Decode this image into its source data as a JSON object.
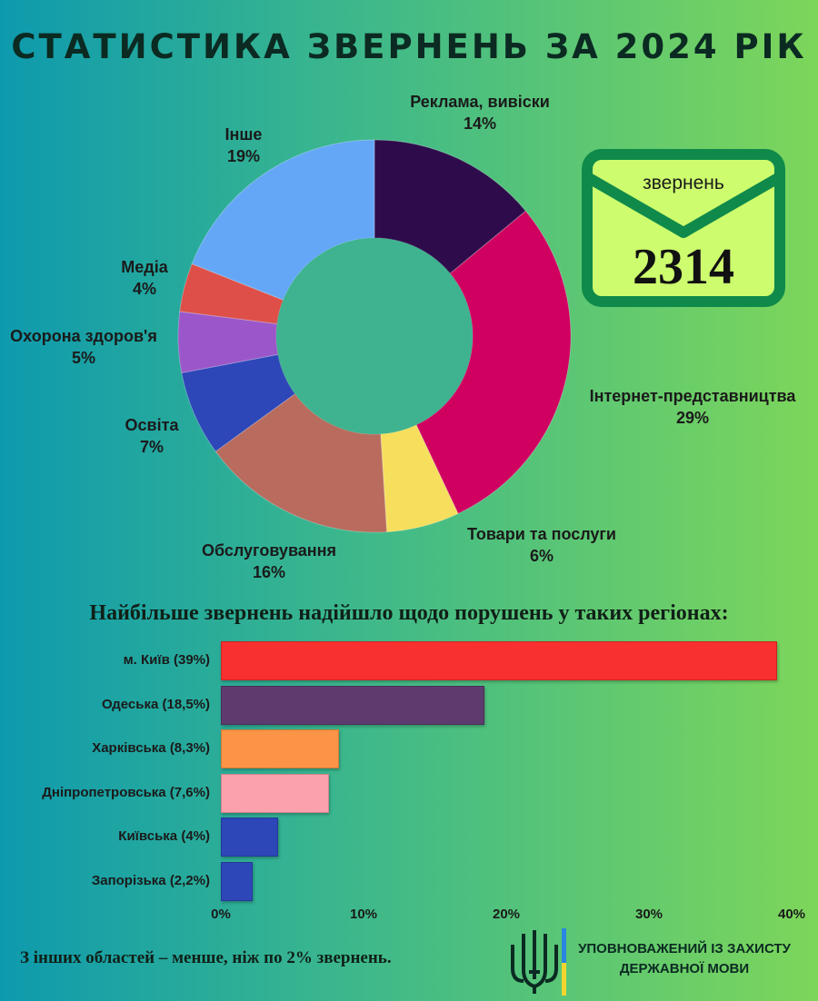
{
  "title": "СТАТИСТИКА ЗВЕРНЕНЬ ЗА 2024 РІК",
  "envelope": {
    "label": "звернень",
    "number": "2314"
  },
  "colors": {
    "background_left": "#0e9aae",
    "background_right": "#7dd65a",
    "envelope_fill": "#cdfc6e",
    "envelope_border": "#0f8a4a"
  },
  "chart_data": [
    {
      "type": "pie",
      "donut": true,
      "slices": [
        {
          "label": "Реклама, вивіски",
          "pct_label": "14%",
          "value": 14,
          "color": "#2e0b4b"
        },
        {
          "label": "Інтернет-представництва",
          "pct_label": "29%",
          "value": 29,
          "color": "#cf0060"
        },
        {
          "label": "Товари та послуги",
          "pct_label": "6%",
          "value": 6,
          "color": "#f6df5d"
        },
        {
          "label": "Обслуговування",
          "pct_label": "16%",
          "value": 16,
          "color": "#b96b5e"
        },
        {
          "label": "Освіта",
          "pct_label": "7%",
          "value": 7,
          "color": "#2d46b8"
        },
        {
          "label": "Охорона здоров'я",
          "pct_label": "5%",
          "value": 5,
          "color": "#9b57c9"
        },
        {
          "label": "Медіа",
          "pct_label": "4%",
          "value": 4,
          "color": "#dd4f48"
        },
        {
          "label": "Інше",
          "pct_label": "19%",
          "value": 19,
          "color": "#64a7f7"
        }
      ]
    },
    {
      "type": "bar",
      "orientation": "horizontal",
      "title": "Найбільше звернень надійшло щодо порушень  у таких регіонах:",
      "categories": [
        "м. Київ (39%)",
        "Одеська (18,5%)",
        "Харківська (8,3%)",
        "Дніпропетровська (7,6%)",
        "Київська (4%)",
        "Запорізька (2,2%)"
      ],
      "values": [
        39,
        18.5,
        8.3,
        7.6,
        4,
        2.2
      ],
      "colors": [
        "#f8302f",
        "#5d3b6e",
        "#fb9446",
        "#fba0ad",
        "#2d46b8",
        "#2d46b8"
      ],
      "xlim": [
        0,
        40
      ],
      "x_ticks": [
        "0%",
        "10%",
        "20%",
        "30%",
        "40%"
      ],
      "grid": false
    }
  ],
  "footnote": "З інших областей – менше, ніж по 2% звернень.",
  "org": {
    "line1": "УПОВНОВАЖЕНИЙ ІЗ ЗАХИСТУ",
    "line2": "ДЕРЖАВНОЇ МОВИ"
  }
}
